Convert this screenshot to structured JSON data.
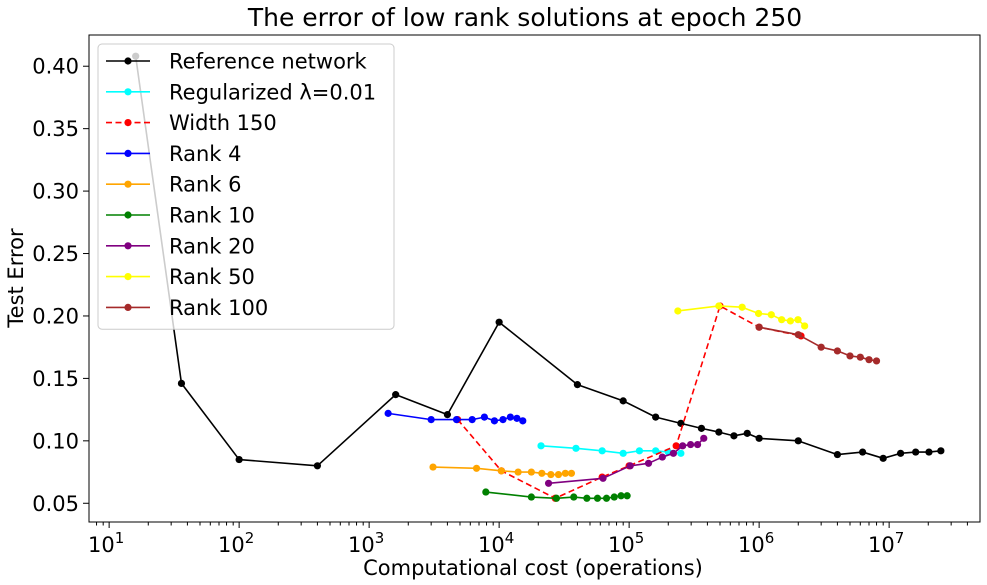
{
  "chart_data": {
    "type": "line",
    "title": "The error of low rank solutions at epoch 250",
    "xlabel": "Computational cost (operations)",
    "ylabel": "Test Error",
    "xscale": "log",
    "xlim": [
      7.0,
      50000000
    ],
    "ylim": [
      0.035,
      0.425
    ],
    "x_ticks": [
      10,
      100,
      1000,
      10000,
      100000,
      1000000,
      10000000
    ],
    "x_tick_labels": [
      {
        "base": "10",
        "exp": "1"
      },
      {
        "base": "10",
        "exp": "2"
      },
      {
        "base": "10",
        "exp": "3"
      },
      {
        "base": "10",
        "exp": "4"
      },
      {
        "base": "10",
        "exp": "5"
      },
      {
        "base": "10",
        "exp": "6"
      },
      {
        "base": "10",
        "exp": "7"
      }
    ],
    "y_ticks": [
      0.05,
      0.1,
      0.15,
      0.2,
      0.25,
      0.3,
      0.35,
      0.4
    ],
    "y_tick_labels": [
      "0.05",
      "0.10",
      "0.15",
      "0.20",
      "0.25",
      "0.30",
      "0.35",
      "0.40"
    ],
    "grid": false,
    "legend_position": "upper-left",
    "series": [
      {
        "name": "Reference network",
        "color": "#000000",
        "linestyle": "solid",
        "x": [
          16,
          36,
          100,
          400,
          1600,
          4000,
          10000,
          40000,
          90000,
          160000,
          250000,
          360000,
          490000,
          640000,
          810000,
          1000000,
          2000000,
          4000000,
          6250000,
          9000000,
          12250000,
          16000000,
          20250000,
          25000000
        ],
        "y": [
          0.408,
          0.146,
          0.085,
          0.08,
          0.137,
          0.121,
          0.195,
          0.145,
          0.132,
          0.119,
          0.114,
          0.11,
          0.107,
          0.104,
          0.106,
          0.102,
          0.1,
          0.089,
          0.091,
          0.086,
          0.09,
          0.091,
          0.091,
          0.092
        ]
      },
      {
        "name": "Regularized λ=0.01",
        "color": "#00ffff",
        "linestyle": "solid",
        "x": [
          21000,
          39000,
          62000,
          90000,
          120000,
          160000,
          200000,
          250000
        ],
        "y": [
          0.096,
          0.094,
          0.092,
          0.09,
          0.092,
          0.092,
          0.091,
          0.09
        ]
      },
      {
        "name": "Width 150",
        "color": "#ff0000",
        "linestyle": "dashed",
        "x": [
          4800,
          10400,
          27000,
          62000,
          100000,
          230000,
          500000,
          1000000,
          2100000
        ],
        "y": [
          0.117,
          0.076,
          0.054,
          0.071,
          0.08,
          0.096,
          0.208,
          0.191,
          0.184
        ]
      },
      {
        "name": "Rank 4",
        "color": "#0000ff",
        "linestyle": "solid",
        "x": [
          1400,
          3000,
          4700,
          6200,
          7700,
          9200,
          10700,
          12200,
          13700,
          15200
        ],
        "y": [
          0.122,
          0.117,
          0.117,
          0.117,
          0.119,
          0.116,
          0.117,
          0.119,
          0.118,
          0.116
        ]
      },
      {
        "name": "Rank 6",
        "color": "#ffa500",
        "linestyle": "solid",
        "x": [
          3100,
          6700,
          10400,
          14000,
          17700,
          21300,
          25000,
          28600,
          32300,
          36000
        ],
        "y": [
          0.079,
          0.078,
          0.076,
          0.075,
          0.075,
          0.074,
          0.073,
          0.073,
          0.074,
          0.074
        ]
      },
      {
        "name": "Rank 10",
        "color": "#008000",
        "linestyle": "solid",
        "x": [
          7900,
          17700,
          27600,
          37500,
          47300,
          57100,
          67000,
          76800,
          86700,
          96500
        ],
        "y": [
          0.059,
          0.055,
          0.054,
          0.055,
          0.054,
          0.054,
          0.054,
          0.055,
          0.056,
          0.056
        ]
      },
      {
        "name": "Rank 20",
        "color": "#800080",
        "linestyle": "solid",
        "x": [
          24000,
          63000,
          102000,
          141000,
          180000,
          219000,
          258000,
          297000,
          336000,
          375000
        ],
        "y": [
          0.066,
          0.07,
          0.08,
          0.082,
          0.087,
          0.09,
          0.096,
          0.097,
          0.097,
          0.102
        ]
      },
      {
        "name": "Rank 50",
        "color": "#ffff00",
        "linestyle": "solid",
        "x": [
          237000,
          490000,
          740000,
          990000,
          1240000,
          1490000,
          1740000,
          1990000,
          2240000
        ],
        "y": [
          0.204,
          0.208,
          0.207,
          0.202,
          0.201,
          0.197,
          0.196,
          0.197,
          0.192
        ]
      },
      {
        "name": "Rank 100",
        "color": "#a52a2a",
        "linestyle": "solid",
        "x": [
          1000000,
          2000000,
          3000000,
          4000000,
          5000000,
          6000000,
          7000000,
          8000000
        ],
        "y": [
          0.191,
          0.185,
          0.175,
          0.172,
          0.168,
          0.167,
          0.165,
          0.164
        ]
      }
    ]
  }
}
